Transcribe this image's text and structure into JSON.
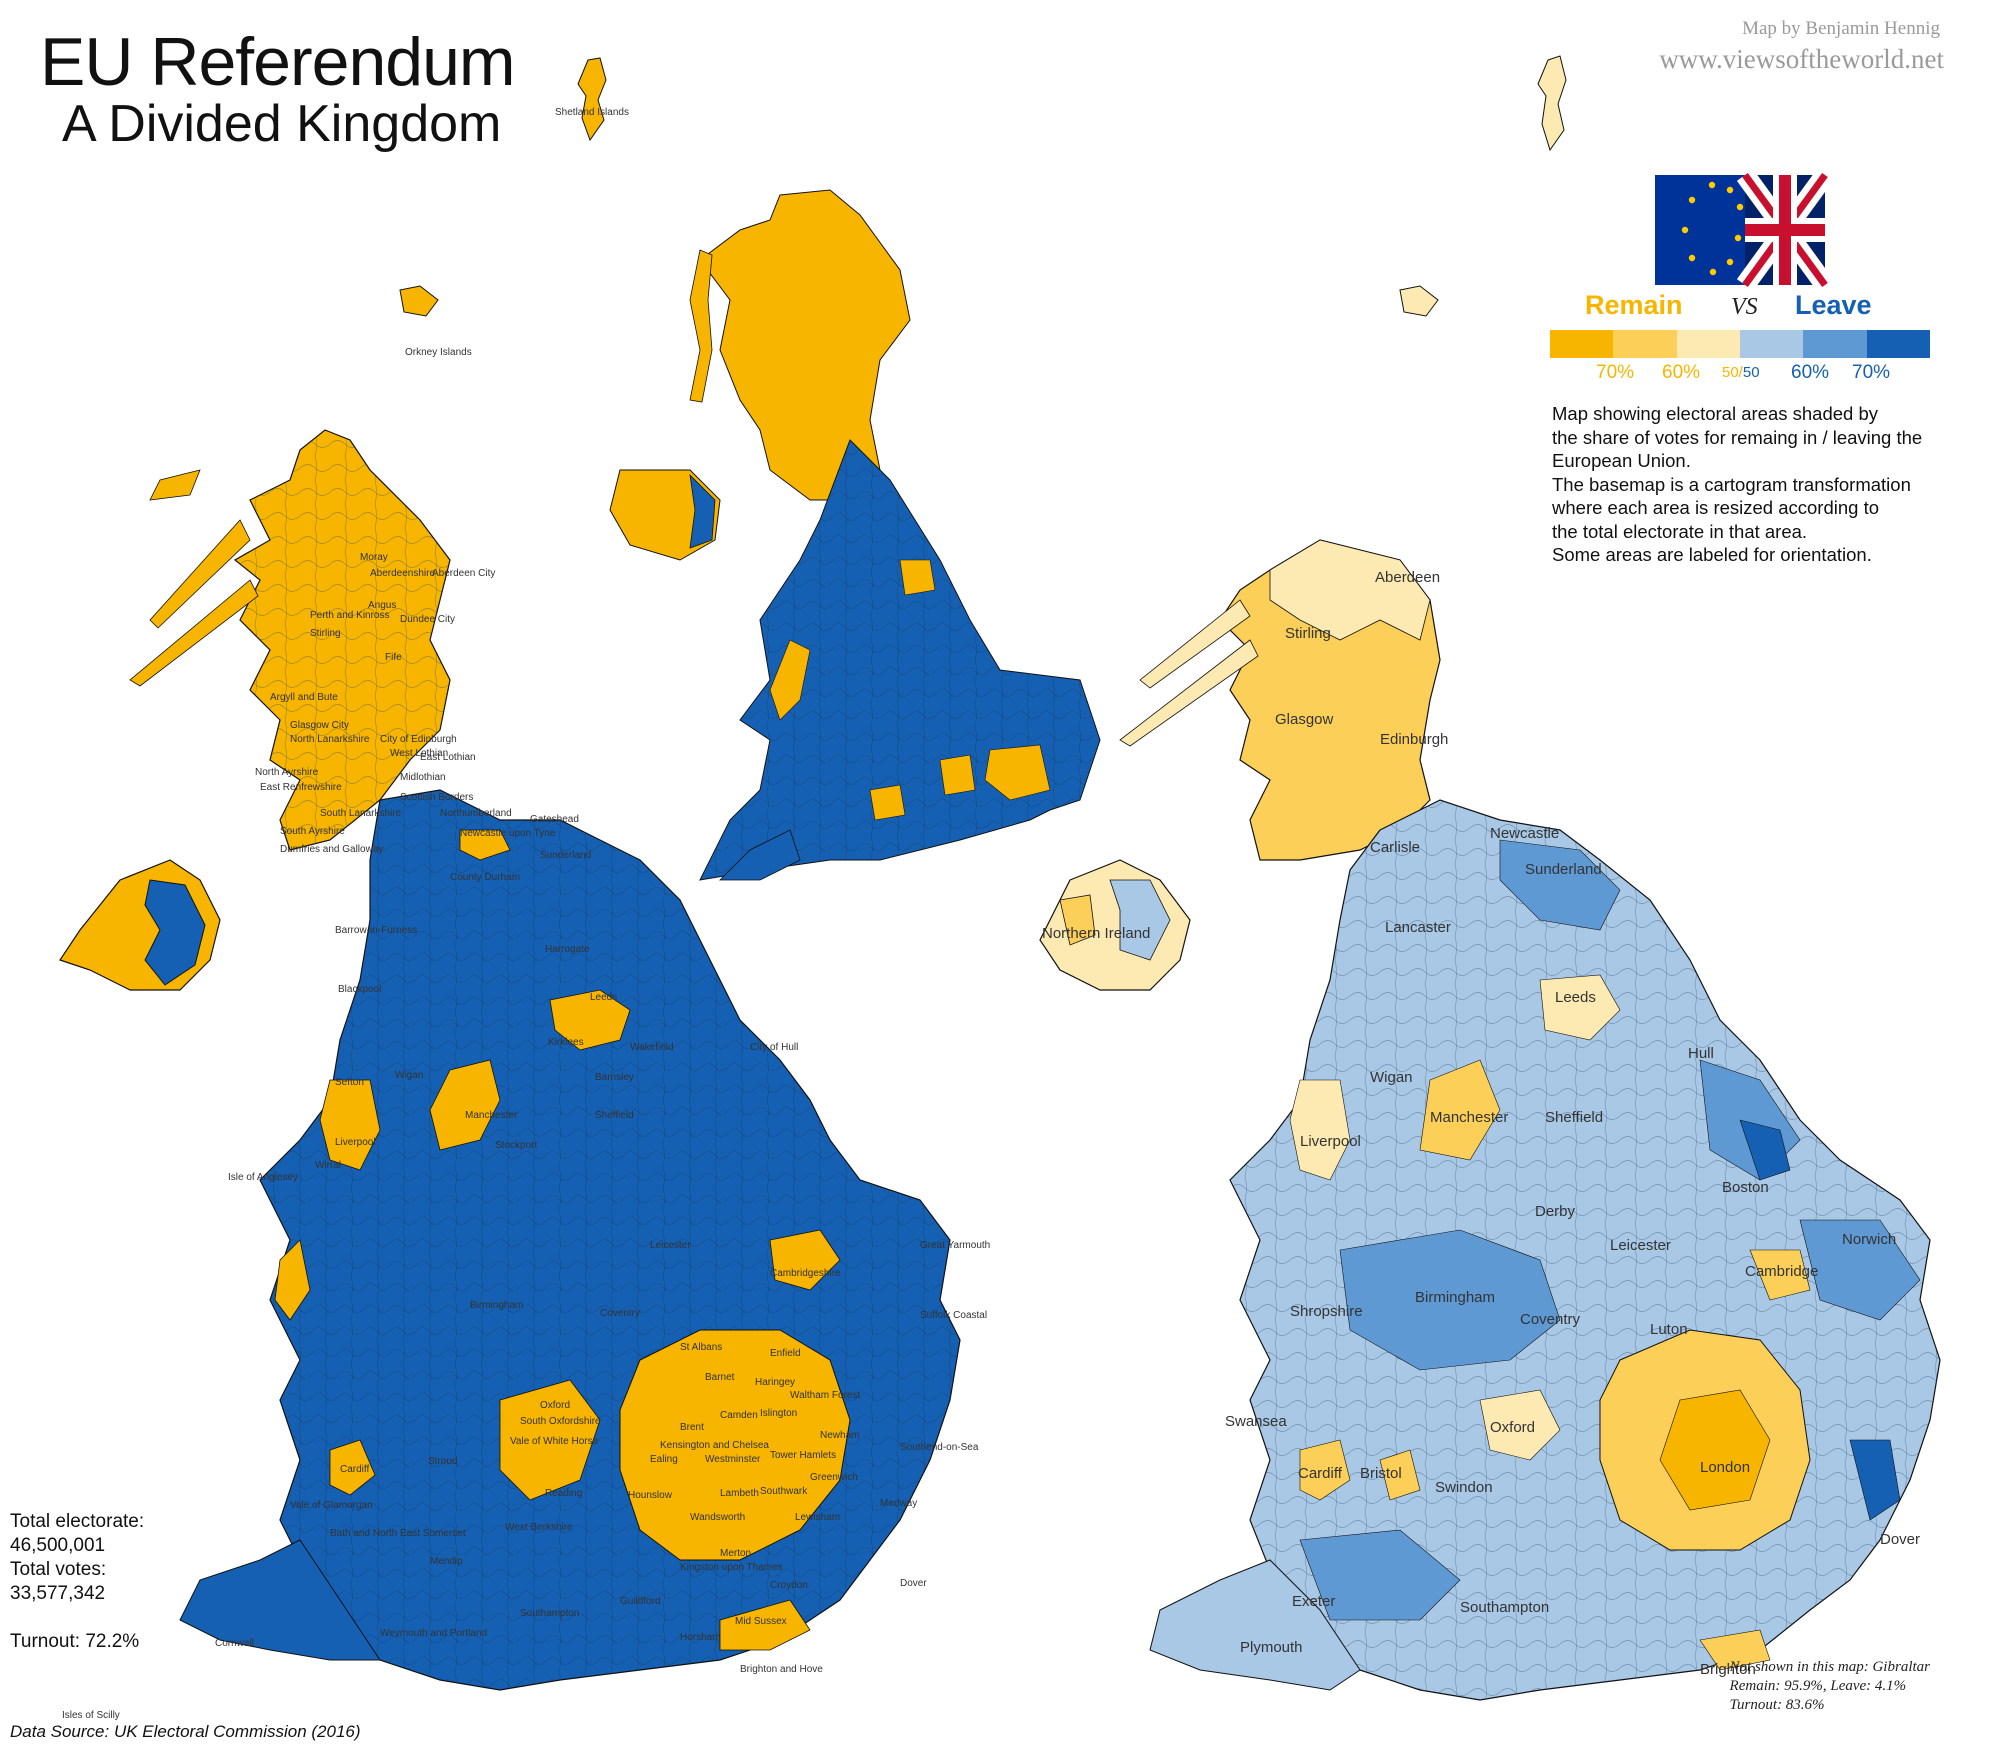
{
  "header": {
    "title_line1": "EU Referendum",
    "title_line2": "A Divided Kingdom",
    "credit_line1": "Map by Benjamin Hennig",
    "credit_line2": "www.viewsoftheworld.net"
  },
  "legend": {
    "remain_label": "Remain",
    "vs_label": "VS",
    "leave_label": "Leave",
    "ticks": [
      "70%",
      "60%",
      "50/50",
      "60%",
      "70%"
    ],
    "tick_50_left": "50/",
    "tick_50_right": "50",
    "colors": {
      "remain_70": "#f7b500",
      "remain_60": "#fccf58",
      "remain_50": "#fde9b2",
      "leave_50": "#a8c8e6",
      "leave_60": "#5f99d3",
      "leave_70": "#1560b2"
    }
  },
  "description": {
    "lines": [
      "Map showing electoral areas shaded by",
      "the share of votes for remaing in / leaving the",
      "European Union.",
      "The basemap is a cartogram transformation",
      "where each area is resized according to",
      "the total electorate in that area.",
      "Some areas are labeled for orientation."
    ]
  },
  "stats": {
    "electorate_label": "Total electorate:",
    "electorate_value": "46,500,001",
    "votes_label": "Total votes:",
    "votes_value": "33,577,342",
    "turnout": "Turnout: 72.2%"
  },
  "source": "Data Source: UK Electoral Commission (2016)",
  "gibraltar": {
    "line1": "Not shown in this map: Gibraltar",
    "line2": "Remain: 95.9%, Leave: 4.1%",
    "line3": "Turnout: 83.6%"
  },
  "map_labels": {
    "left": {
      "shetland": "Shetland Islands",
      "orkney": "Orkney Islands",
      "moray": "Moray",
      "aberdeenshire": "Aberdeenshire",
      "aberdeen_city": "Aberdeen City",
      "angus": "Angus",
      "perth_kinross": "Perth and Kinross",
      "dundee": "Dundee City",
      "stirling": "Stirling",
      "fife": "Fife",
      "argyll": "Argyll and Bute",
      "glasgow": "Glasgow City",
      "north_lanarkshire": "North Lanarkshire",
      "edinburgh": "City of Edinburgh",
      "west_lothian": "West Lothian",
      "east_lothian": "East Lothian",
      "midlothian": "Midlothian",
      "north_ayrshire": "North Ayrshire",
      "east_renfrewshire": "East Renfrewshire",
      "south_lanarkshire": "South Lanarkshire",
      "south_ayrshire": "South Ayrshire",
      "scottish_borders": "Scottish Borders",
      "dumfries": "Dumfries and Galloway",
      "northumberland": "Northumberland",
      "newcastle": "Newcastle upon Tyne",
      "gateshead": "Gateshead",
      "sunderland": "Sunderland",
      "county_durham": "County Durham",
      "barrow": "Barrow-in-Furness",
      "harrogate": "Harrogate",
      "blackpool": "Blackpool",
      "leeds": "Leeds",
      "kirklees": "Kirklees",
      "wakefield": "Wakefield",
      "hull": "City of Hull",
      "barnsley": "Barnsley",
      "sefton": "Sefton",
      "wigan": "Wigan",
      "manchester": "Manchester",
      "sheffield": "Sheffield",
      "liverpool": "Liverpool",
      "wirral": "Wirral",
      "stockport": "Stockport",
      "isle_anglesey": "Isle of Anglesey",
      "leicester": "Leicester",
      "great_yarmouth": "Great Yarmouth",
      "birmingham": "Birmingham",
      "cambridgeshire": "Cambridgeshire",
      "coventry": "Coventry",
      "suffolk_coastal": "Suffolk Coastal",
      "st_albans": "St Albans",
      "enfield": "Enfield",
      "barnet": "Barnet",
      "haringey": "Haringey",
      "waltham_forest": "Waltham Forest",
      "camden": "Camden",
      "islington": "Islington",
      "brent": "Brent",
      "newham": "Newham",
      "ealing": "Ealing",
      "westminster": "Westminster",
      "kensington": "Kensington and Chelsea",
      "tower_hamlets": "Tower Hamlets",
      "hounslow": "Hounslow",
      "southwark": "Southwark",
      "lambeth": "Lambeth",
      "greenwich": "Greenwich",
      "wandsworth": "Wandsworth",
      "lewisham": "Lewisham",
      "merton": "Merton",
      "kingston": "Kingston upon Thames",
      "croydon": "Croydon",
      "south_oxfordshire": "South Oxfordshire",
      "oxford": "Oxford",
      "vale_white_horse": "Vale of White Horse",
      "reading": "Reading",
      "stroud": "Stroud",
      "cardiff": "Cardiff",
      "vale_glamorgan": "Vale of Glamorgan",
      "bath": "Bath and North East Somerset",
      "west_berkshire": "West Berkshire",
      "mendip": "Mendip",
      "guildford": "Guildford",
      "mid_sussex": "Mid Sussex",
      "horsham": "Horsham",
      "brighton": "Brighton and Hove",
      "southampton": "Southampton",
      "weymouth": "Weymouth and Portland",
      "cornwall": "Cornwall",
      "isles_scilly": "Isles of Scilly",
      "southend": "Southend-on-Sea",
      "medway": "Medway",
      "dover": "Dover"
    },
    "right": {
      "aberdeen": "Aberdeen",
      "stirling": "Stirling",
      "glasgow": "Glasgow",
      "edinburgh": "Edinburgh",
      "northern_ireland": "Northern Ireland",
      "carlisle": "Carlisle",
      "newcastle": "Newcastle",
      "sunderland": "Sunderland",
      "lancaster": "Lancaster",
      "leeds": "Leeds",
      "hull": "Hull",
      "wigan": "Wigan",
      "manchester": "Manchester",
      "sheffield": "Sheffield",
      "liverpool": "Liverpool",
      "boston": "Boston",
      "derby": "Derby",
      "leicester": "Leicester",
      "norwich": "Norwich",
      "cambridge": "Cambridge",
      "birmingham": "Birmingham",
      "shropshire": "Shropshire",
      "coventry": "Coventry",
      "luton": "Luton",
      "oxford": "Oxford",
      "swansea": "Swansea",
      "cardiff": "Cardiff",
      "bristol": "Bristol",
      "swindon": "Swindon",
      "london": "London",
      "exeter": "Exeter",
      "southampton": "Southampton",
      "plymouth": "Plymouth",
      "brighton": "Brighton",
      "dover": "Dover"
    }
  }
}
